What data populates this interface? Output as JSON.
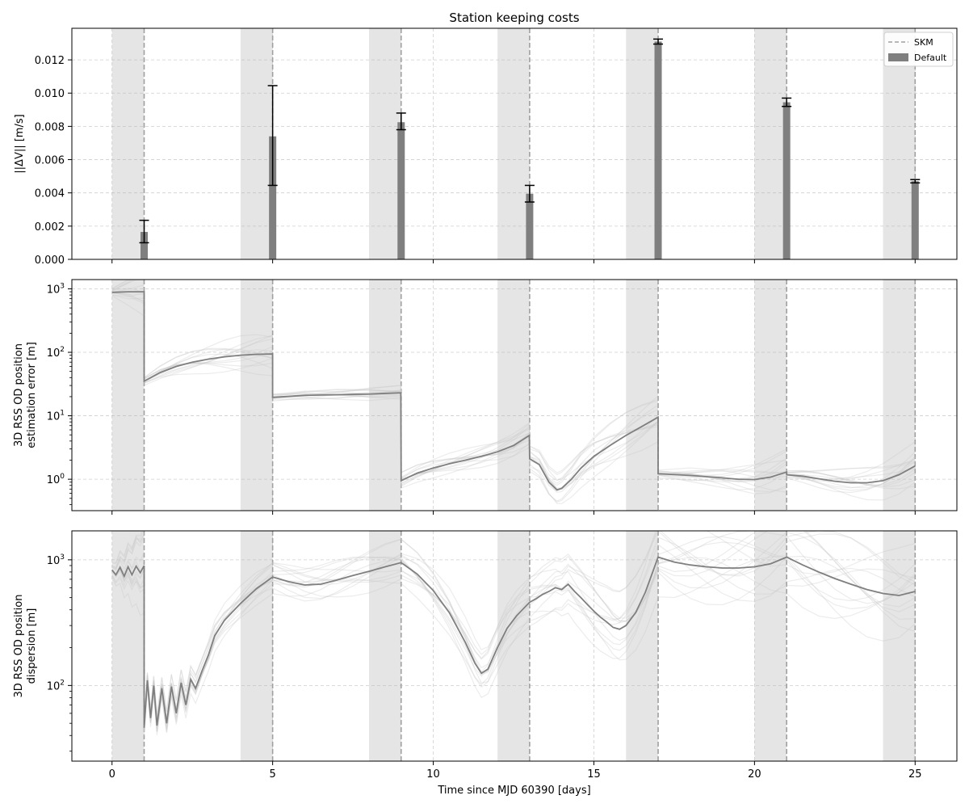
{
  "chart_data": {
    "type": "line",
    "title": "Station keeping costs",
    "xlabel": "Time since MJD 60390 [days]",
    "xlim": [
      -1.25,
      26.3
    ],
    "xticks": [
      0,
      5,
      10,
      15,
      20,
      25
    ],
    "xtick_labels": [
      "0",
      "5",
      "10",
      "15",
      "20",
      "25"
    ],
    "grid": true,
    "tracking_windows": [
      [
        0,
        1
      ],
      [
        4,
        5
      ],
      [
        8,
        9
      ],
      [
        12,
        13
      ],
      [
        16,
        17
      ],
      [
        20,
        21
      ],
      [
        24,
        25
      ]
    ],
    "maneuver_times": [
      1,
      5,
      9,
      13,
      17,
      21,
      25
    ],
    "colors": {
      "window": "#e5e5e5",
      "skm_line": "#a0a0a0",
      "bar": "#7f7f7f",
      "main_line": "#7f7f7f",
      "error_bar": "#000000"
    },
    "panels": [
      {
        "id": "dv",
        "type": "bar",
        "ylabel": "||ΔV|| [m/s]",
        "ylim": [
          0,
          0.0139
        ],
        "yticks": [
          0,
          0.002,
          0.004,
          0.006,
          0.008,
          0.01,
          0.012
        ],
        "ytick_labels": [
          "0.000",
          "0.002",
          "0.004",
          "0.006",
          "0.008",
          "0.010",
          "0.012"
        ],
        "legend": {
          "position": "upper-right",
          "entries": [
            {
              "label": "SKM",
              "style": "dashed-line"
            },
            {
              "label": "Default",
              "style": "bar"
            }
          ]
        },
        "bars": [
          {
            "x": 1,
            "value": 0.00165,
            "err_low": 0.001,
            "err_high": 0.00235
          },
          {
            "x": 5,
            "value": 0.0074,
            "err_low": 0.00445,
            "err_high": 0.01045
          },
          {
            "x": 9,
            "value": 0.00825,
            "err_low": 0.0078,
            "err_high": 0.0088
          },
          {
            "x": 13,
            "value": 0.00395,
            "err_low": 0.00345,
            "err_high": 0.00445
          },
          {
            "x": 17,
            "value": 0.0131,
            "err_low": 0.01295,
            "err_high": 0.01325
          },
          {
            "x": 21,
            "value": 0.00945,
            "err_low": 0.0092,
            "err_high": 0.0097
          },
          {
            "x": 25,
            "value": 0.0047,
            "err_low": 0.0046,
            "err_high": 0.0048
          }
        ]
      },
      {
        "id": "od-error",
        "type": "line",
        "scale": "log",
        "ylabel_lines": [
          "3D RSS OD position",
          "estimation error [m]"
        ],
        "ylim": [
          0.32,
          1400
        ],
        "yticks": [
          1,
          10,
          100,
          1000
        ],
        "ytick_labels": [
          "10^0",
          "10^1",
          "10^2",
          "10^3"
        ],
        "main_series": [
          [
            0,
            880
          ],
          [
            0.5,
            900
          ],
          [
            1,
            900
          ],
          [
            1,
            35
          ],
          [
            1.5,
            48
          ],
          [
            2,
            60
          ],
          [
            2.5,
            70
          ],
          [
            3,
            78
          ],
          [
            3.5,
            85
          ],
          [
            4,
            90
          ],
          [
            4.5,
            93
          ],
          [
            5,
            94
          ],
          [
            5,
            19.5
          ],
          [
            6,
            21
          ],
          [
            7,
            21.5
          ],
          [
            8,
            22
          ],
          [
            8.99,
            23
          ],
          [
            9,
            0.95
          ],
          [
            9.5,
            1.25
          ],
          [
            10,
            1.5
          ],
          [
            10.5,
            1.75
          ],
          [
            11,
            2.0
          ],
          [
            11.5,
            2.3
          ],
          [
            12,
            2.7
          ],
          [
            12.5,
            3.4
          ],
          [
            12.99,
            4.9
          ],
          [
            13,
            2.1
          ],
          [
            13.3,
            1.7
          ],
          [
            13.6,
            0.9
          ],
          [
            13.85,
            0.68
          ],
          [
            14,
            0.72
          ],
          [
            14.3,
            1.0
          ],
          [
            14.6,
            1.5
          ],
          [
            15,
            2.3
          ],
          [
            15.5,
            3.4
          ],
          [
            16,
            4.9
          ],
          [
            16.5,
            6.8
          ],
          [
            17,
            9.5
          ],
          [
            17,
            1.22
          ],
          [
            18,
            1.15
          ],
          [
            19,
            1.05
          ],
          [
            19.5,
            1.0
          ],
          [
            20,
            0.99
          ],
          [
            20.5,
            1.08
          ],
          [
            21,
            1.3
          ],
          [
            21,
            1.18
          ],
          [
            21.5,
            1.12
          ],
          [
            22,
            1.02
          ],
          [
            22.5,
            0.93
          ],
          [
            23,
            0.88
          ],
          [
            23.5,
            0.88
          ],
          [
            24,
            0.95
          ],
          [
            24.5,
            1.18
          ],
          [
            25,
            1.62
          ]
        ]
      },
      {
        "id": "od-dispersion",
        "type": "line",
        "scale": "log",
        "ylabel_lines": [
          "3D RSS OD position",
          "dispersion [m]"
        ],
        "ylim": [
          25,
          1700
        ],
        "yticks": [
          100,
          1000
        ],
        "ytick_labels": [
          "10^2",
          "10^3"
        ],
        "main_series": [
          [
            0,
            830
          ],
          [
            0.12,
            760
          ],
          [
            0.25,
            870
          ],
          [
            0.38,
            740
          ],
          [
            0.5,
            880
          ],
          [
            0.62,
            760
          ],
          [
            0.75,
            890
          ],
          [
            0.88,
            790
          ],
          [
            1,
            900
          ],
          [
            1,
            46
          ],
          [
            1.1,
            110
          ],
          [
            1.2,
            55
          ],
          [
            1.3,
            100
          ],
          [
            1.4,
            48
          ],
          [
            1.55,
            95
          ],
          [
            1.7,
            50
          ],
          [
            1.85,
            98
          ],
          [
            2.0,
            60
          ],
          [
            2.15,
            105
          ],
          [
            2.3,
            70
          ],
          [
            2.45,
            112
          ],
          [
            2.6,
            95
          ],
          [
            2.8,
            130
          ],
          [
            3.0,
            175
          ],
          [
            3.2,
            250
          ],
          [
            3.5,
            330
          ],
          [
            4,
            450
          ],
          [
            4.5,
            590
          ],
          [
            5,
            730
          ],
          [
            5.5,
            670
          ],
          [
            6,
            630
          ],
          [
            6.5,
            640
          ],
          [
            7,
            690
          ],
          [
            7.5,
            750
          ],
          [
            8,
            810
          ],
          [
            8.5,
            880
          ],
          [
            9,
            950
          ],
          [
            9.5,
            770
          ],
          [
            10,
            570
          ],
          [
            10.5,
            380
          ],
          [
            11,
            220
          ],
          [
            11.3,
            150
          ],
          [
            11.5,
            125
          ],
          [
            11.7,
            135
          ],
          [
            12,
            200
          ],
          [
            12.3,
            285
          ],
          [
            12.6,
            360
          ],
          [
            13,
            460
          ],
          [
            13.2,
            490
          ],
          [
            13.4,
            530
          ],
          [
            13.6,
            560
          ],
          [
            13.8,
            600
          ],
          [
            14,
            580
          ],
          [
            14.2,
            640
          ],
          [
            14.4,
            560
          ],
          [
            14.6,
            500
          ],
          [
            14.8,
            440
          ],
          [
            15,
            390
          ],
          [
            15.2,
            350
          ],
          [
            15.4,
            320
          ],
          [
            15.6,
            290
          ],
          [
            15.8,
            280
          ],
          [
            16.0,
            300
          ],
          [
            16.3,
            380
          ],
          [
            16.6,
            550
          ],
          [
            17,
            1050
          ],
          [
            17.5,
            960
          ],
          [
            18,
            910
          ],
          [
            18.5,
            880
          ],
          [
            19,
            860
          ],
          [
            19.5,
            860
          ],
          [
            20,
            880
          ],
          [
            20.5,
            930
          ],
          [
            21,
            1050
          ],
          [
            21.5,
            910
          ],
          [
            22,
            800
          ],
          [
            22.5,
            710
          ],
          [
            23,
            640
          ],
          [
            23.5,
            580
          ],
          [
            24,
            540
          ],
          [
            24.5,
            520
          ],
          [
            25,
            560
          ]
        ]
      }
    ]
  }
}
